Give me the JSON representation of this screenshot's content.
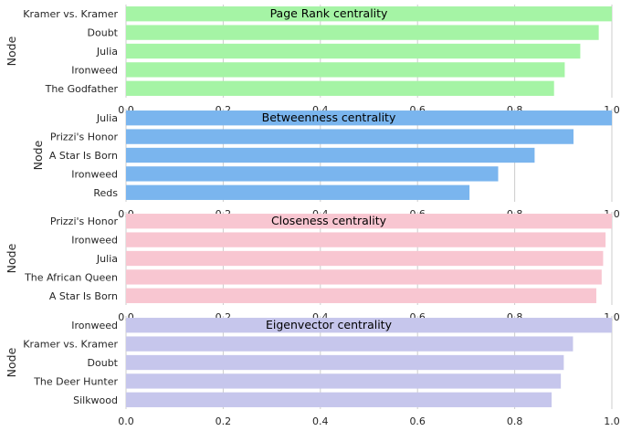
{
  "chart_data": [
    {
      "type": "bar",
      "orientation": "horizontal",
      "title": "Page Rank centrality",
      "ylabel": "Node",
      "xlabel": "",
      "categories": [
        "Kramer vs. Kramer",
        "Doubt",
        "Julia",
        "Ironweed",
        "The Godfather"
      ],
      "values": [
        1.0,
        0.973,
        0.935,
        0.903,
        0.881
      ],
      "xlim": [
        0,
        1.0
      ],
      "xticks": [
        "0.0",
        "0.2",
        "0.4",
        "0.6",
        "0.8",
        "1.0"
      ],
      "color": "#a5f4a5",
      "grid": true
    },
    {
      "type": "bar",
      "orientation": "horizontal",
      "title": "Betweenness centrality",
      "ylabel": "Node",
      "xlabel": "",
      "categories": [
        "Julia",
        "Prizzi's Honor",
        "A Star Is Born",
        "Ironweed",
        "Reds"
      ],
      "values": [
        1.0,
        0.921,
        0.841,
        0.766,
        0.707
      ],
      "xlim": [
        0,
        1.0
      ],
      "xticks": [
        "0.0",
        "0.2",
        "0.4",
        "0.6",
        "0.8",
        "1.0"
      ],
      "color": "#7ab5ee",
      "grid": true
    },
    {
      "type": "bar",
      "orientation": "horizontal",
      "title": "Closeness centrality",
      "ylabel": "Node",
      "xlabel": "",
      "categories": [
        "Prizzi's Honor",
        "Ironweed",
        "Julia",
        "The African Queen",
        "A Star Is Born"
      ],
      "values": [
        1.0,
        0.987,
        0.982,
        0.979,
        0.968
      ],
      "xlim": [
        0,
        1.0
      ],
      "xticks": [
        "0.0",
        "0.2",
        "0.4",
        "0.6",
        "0.8",
        "1.0"
      ],
      "color": "#f8c6d1",
      "grid": true
    },
    {
      "type": "bar",
      "orientation": "horizontal",
      "title": "Eigenvector centrality",
      "ylabel": "Node",
      "xlabel": "",
      "categories": [
        "Ironweed",
        "Kramer vs. Kramer",
        "Doubt",
        "The Deer Hunter",
        "Silkwood"
      ],
      "values": [
        1.0,
        0.92,
        0.901,
        0.895,
        0.876
      ],
      "xlim": [
        0,
        1.0
      ],
      "xticks": [
        "0.0",
        "0.2",
        "0.4",
        "0.6",
        "0.8",
        "1.0"
      ],
      "color": "#c6c6ec",
      "grid": true
    }
  ]
}
